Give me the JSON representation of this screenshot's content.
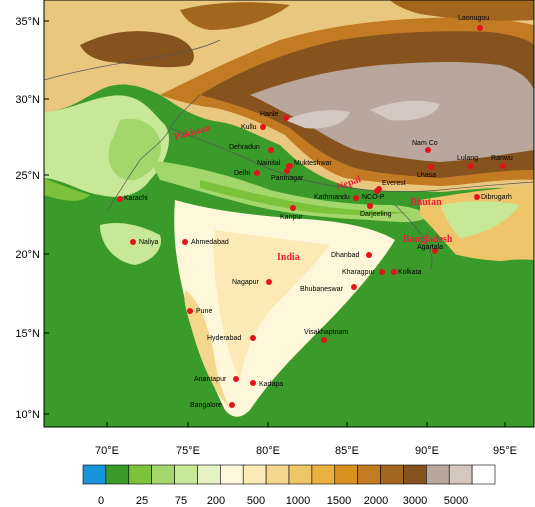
{
  "map": {
    "lat_ticks": [
      "35°N",
      "30°N",
      "25°N",
      "20°N",
      "15°N",
      "10°N"
    ],
    "lon_ticks": [
      "70°E",
      "75°E",
      "80°E",
      "85°E",
      "90°E",
      "95°E"
    ],
    "countries": [
      "Pakistan",
      "Nepal",
      "India",
      "Bhutan",
      "Bangladesh"
    ],
    "cities": [
      "Laonugou",
      "Hanle",
      "Kullu",
      "Dehradun",
      "Nainital",
      "Mukteshwar",
      "Delhi",
      "Pantnagar",
      "Nam Co",
      "Lhasa",
      "Lulang",
      "Ranwu",
      "Karachi",
      "Everest",
      "NCO-P",
      "Kathmandu",
      "Darjeeling",
      "Dibrugarh",
      "Kanpur",
      "Naliya",
      "Ahmedabad",
      "Agartala",
      "Dhanbad",
      "Kharagpur",
      "Kolkata",
      "Nagapur",
      "Bhubaneswar",
      "Pune",
      "Hyderabad",
      "Visakhaptnam",
      "Anantapur",
      "Kadapa",
      "Bangalore"
    ],
    "marker_color": "#e3131b"
  },
  "colorbar": {
    "labels": [
      "0",
      "25",
      "75",
      "200",
      "500",
      "1000",
      "1500",
      "2000",
      "3000",
      "5000"
    ],
    "colors": [
      "#1a93dd",
      "#3a9b2a",
      "#7cc23a",
      "#a3d66b",
      "#c7e896",
      "#e5f3c4",
      "#fef7d9",
      "#fbeab5",
      "#f4d68c",
      "#efc56a",
      "#e9b140",
      "#d99222",
      "#c27a23",
      "#a3661f",
      "#86521d",
      "#b9a79d",
      "#d4c7c0",
      "#ffffff"
    ]
  }
}
